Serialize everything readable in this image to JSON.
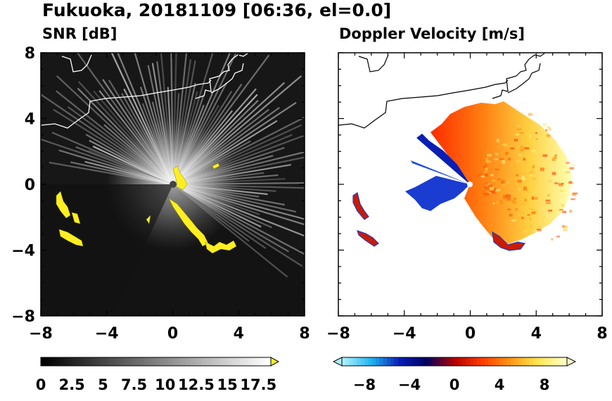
{
  "figure": {
    "title": "Fukuoka, 20181109 [06:36, el=0.0]"
  },
  "chart_data": [
    {
      "type": "heatmap",
      "title": "SNR [dB]",
      "xlabel": "",
      "ylabel": "",
      "xlim": [
        -8,
        8
      ],
      "ylim": [
        -8,
        8
      ],
      "x_ticks": [
        "−8",
        "−4",
        "0",
        "4",
        "8"
      ],
      "y_ticks": [
        "8",
        "4",
        "0",
        "−4",
        "−8"
      ],
      "colorbar": {
        "min": 0,
        "max": 18.5,
        "tick_labels": [
          "0",
          "2.5",
          "5",
          "7.5",
          "10",
          "12.5",
          "15",
          "17.5"
        ],
        "tick_values": [
          0,
          2.5,
          5,
          7.5,
          10,
          12.5,
          15,
          17.5
        ],
        "colors": [
          "#000000",
          "#ffffff"
        ],
        "extend_color": "#ffee22"
      },
      "background": "#141414",
      "radar_center": [
        0,
        0
      ]
    },
    {
      "type": "heatmap",
      "title": "Doppler Velocity [m/s]",
      "xlabel": "",
      "ylabel": "",
      "xlim": [
        -8,
        8
      ],
      "ylim": [
        -8,
        8
      ],
      "x_ticks": [
        "−8",
        "−4",
        "0",
        "4",
        "8"
      ],
      "y_ticks": [],
      "colorbar": {
        "min": -10,
        "max": 10,
        "tick_labels": [
          "−8",
          "−4",
          "0",
          "4",
          "8"
        ],
        "tick_values": [
          -8,
          -4,
          0,
          4,
          8
        ],
        "colors": [
          "#aaf0ff",
          "#20b4f0",
          "#0a1eb4",
          "#000060",
          "#b40000",
          "#ff3c00",
          "#ff9614",
          "#ffe650",
          "#ffffc8"
        ]
      },
      "background": "#ffffff",
      "radar_center": [
        0,
        0
      ]
    }
  ]
}
